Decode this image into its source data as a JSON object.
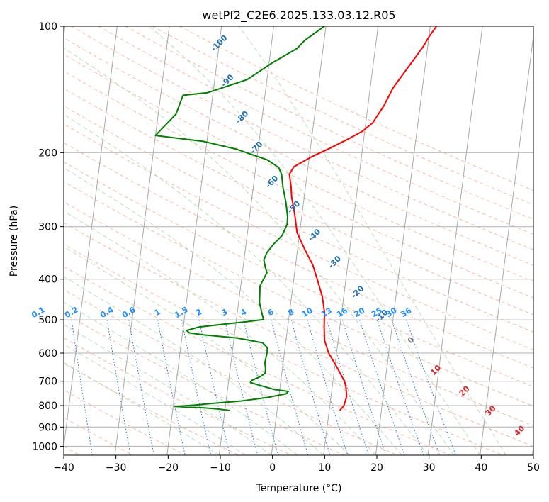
{
  "chart_data": {
    "type": "line",
    "title": "wetPf2_C2E6.2025.133.03.12.R05",
    "xlabel": "Temperature (°C)",
    "ylabel": "Pressure (hPa)",
    "xlim": [
      -40,
      50
    ],
    "ylim": [
      1050,
      100
    ],
    "y_scale": "log",
    "grid": true,
    "x_ticks": [
      "−40",
      "−30",
      "−20",
      "−10",
      "0",
      "10",
      "20",
      "30",
      "40",
      "50"
    ],
    "y_ticks": [
      {
        "p": 100,
        "label": "100"
      },
      {
        "p": 200,
        "label": "200"
      },
      {
        "p": 300,
        "label": "300"
      },
      {
        "p": 400,
        "label": "400"
      },
      {
        "p": 500,
        "label": "500"
      },
      {
        "p": 600,
        "label": "600"
      },
      {
        "p": 700,
        "label": "700"
      },
      {
        "p": 800,
        "label": "800"
      },
      {
        "p": 900,
        "label": "900"
      },
      {
        "p": 1000,
        "label": "1000"
      }
    ],
    "series": [
      {
        "color": "#ff0000",
        "points": [
          [
            822,
            12.0
          ],
          [
            800,
            12.7
          ],
          [
            760,
            13.0
          ],
          [
            720,
            12.6
          ],
          [
            700,
            12.2
          ],
          [
            650,
            10.5
          ],
          [
            600,
            8.5
          ],
          [
            560,
            7.4
          ],
          [
            520,
            7.0
          ],
          [
            480,
            6.7
          ],
          [
            440,
            5.9
          ],
          [
            400,
            4.5
          ],
          [
            370,
            3.3
          ],
          [
            340,
            1.4
          ],
          [
            310,
            -0.5
          ],
          [
            280,
            -1.4
          ],
          [
            255,
            -2.4
          ],
          [
            240,
            -2.8
          ],
          [
            225,
            -3.4
          ],
          [
            216,
            -2.7
          ],
          [
            205,
            0.3
          ],
          [
            195,
            3.8
          ],
          [
            185,
            7.2
          ],
          [
            178,
            9.5
          ],
          [
            170,
            11.3
          ],
          [
            155,
            13.0
          ],
          [
            140,
            14.4
          ],
          [
            125,
            16.8
          ],
          [
            112,
            19.1
          ],
          [
            106,
            20.0
          ],
          [
            100,
            21.2
          ]
        ]
      },
      {
        "color": "#008000",
        "points": [
          [
            822,
            -9.0
          ],
          [
            815,
            -11.5
          ],
          [
            810,
            -14.0
          ],
          [
            804,
            -19.7
          ],
          [
            798,
            -16.0
          ],
          [
            790,
            -12.3
          ],
          [
            780,
            -7.0
          ],
          [
            765,
            -2.1
          ],
          [
            750,
            1.3
          ],
          [
            740,
            1.7
          ],
          [
            732,
            -1.1
          ],
          [
            720,
            -3.2
          ],
          [
            705,
            -5.8
          ],
          [
            697,
            -5.6
          ],
          [
            682,
            -4.0
          ],
          [
            670,
            -3.2
          ],
          [
            655,
            -3.2
          ],
          [
            632,
            -3.5
          ],
          [
            612,
            -3.4
          ],
          [
            597,
            -3.3
          ],
          [
            582,
            -3.4
          ],
          [
            567,
            -4.4
          ],
          [
            552,
            -9.5
          ],
          [
            543,
            -16.0
          ],
          [
            537,
            -18.7
          ],
          [
            530,
            -19.3
          ],
          [
            520,
            -17.0
          ],
          [
            510,
            -11.2
          ],
          [
            505,
            -8.0
          ],
          [
            499,
            -4.8
          ],
          [
            485,
            -5.2
          ],
          [
            455,
            -6.0
          ],
          [
            415,
            -6.3
          ],
          [
            386,
            -5.3
          ],
          [
            376,
            -5.7
          ],
          [
            360,
            -6.2
          ],
          [
            346,
            -5.8
          ],
          [
            330,
            -4.7
          ],
          [
            315,
            -3.3
          ],
          [
            296,
            -2.6
          ],
          [
            284,
            -2.7
          ],
          [
            262,
            -3.4
          ],
          [
            242,
            -4.3
          ],
          [
            225,
            -4.9
          ],
          [
            217,
            -5.6
          ],
          [
            208,
            -8.0
          ],
          [
            196,
            -14.3
          ],
          [
            188,
            -20.7
          ],
          [
            182,
            -30.0
          ],
          [
            162,
            -26.6
          ],
          [
            146,
            -25.7
          ],
          [
            144,
            -21.1
          ],
          [
            134,
            -13.8
          ],
          [
            122,
            -9.3
          ],
          [
            113,
            -5.0
          ],
          [
            108,
            -3.7
          ],
          [
            100,
            -0.3
          ]
        ]
      }
    ],
    "dry_adiabat_labels": [
      "-100",
      "-90",
      "-80",
      "-70",
      "-60",
      "-50",
      "-40",
      "-30",
      "-20",
      "-10"
    ],
    "dry_adiabat_label_positions": [
      {
        "label": "-100",
        "p": 110,
        "t": -20
      },
      {
        "label": "-90",
        "p": 135,
        "t": -17.5
      },
      {
        "label": "-80",
        "p": 165,
        "t": -13.8
      },
      {
        "label": "-70",
        "p": 195,
        "t": -10.3
      },
      {
        "label": "-60",
        "p": 235,
        "t": -6.5
      },
      {
        "label": "-50",
        "p": 270,
        "t": -1.7
      },
      {
        "label": "-40",
        "p": 315,
        "t": 2.9
      },
      {
        "label": "-30",
        "p": 365,
        "t": 7.5
      },
      {
        "label": "-20",
        "p": 430,
        "t": 12.6
      },
      {
        "label": "-10",
        "p": 490,
        "t": 17.8
      }
    ],
    "mixing_ratio_labels": [
      "0.1",
      "0.2",
      "0.4",
      "0.6",
      "1",
      "1.5",
      "2",
      "3",
      "4",
      "6",
      "8",
      "10",
      "13",
      "16",
      "20",
      "25",
      "30",
      "36"
    ],
    "moist_adiabat_labels": [
      "0",
      "10",
      "20",
      "30",
      "40"
    ],
    "moist_adiabat_label_positions": [
      {
        "label": "0",
        "p": 560,
        "t": 24
      },
      {
        "label": "10",
        "p": 660,
        "t": 29.5
      },
      {
        "label": "20",
        "p": 740,
        "t": 35.5
      },
      {
        "label": "30",
        "p": 825,
        "t": 41
      },
      {
        "label": "40",
        "p": 920,
        "t": 47
      }
    ]
  }
}
